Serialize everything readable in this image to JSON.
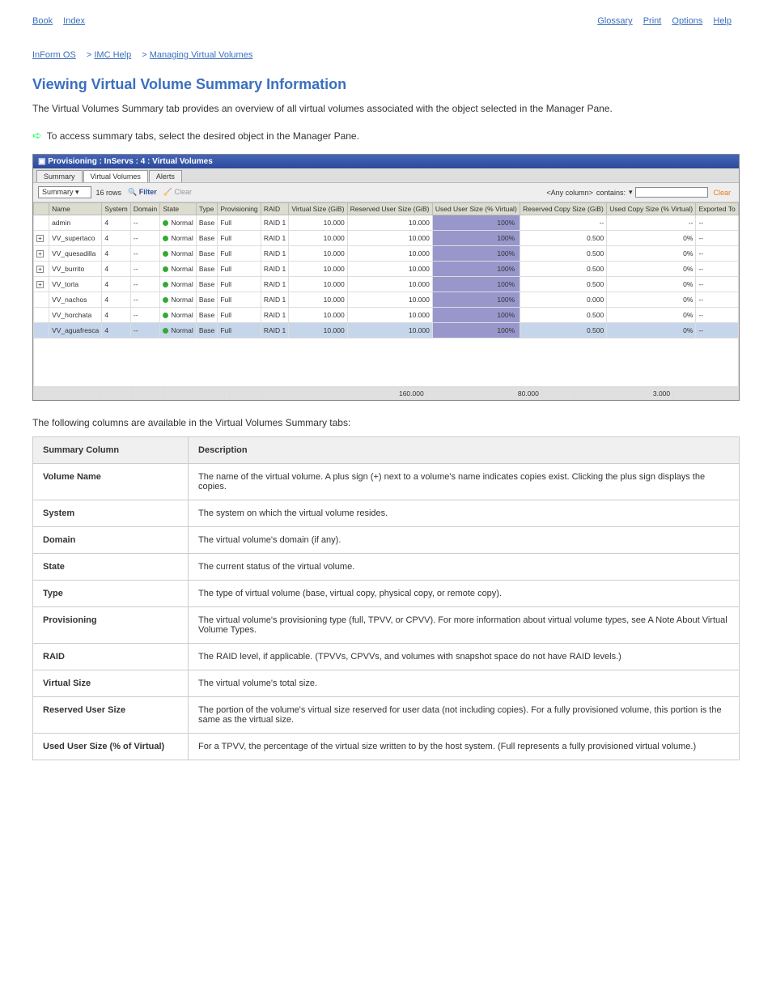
{
  "topnav": {
    "left_book": "Book",
    "left_index": "Index",
    "right_search": "Glossary",
    "right_print": "Print",
    "right_options": "Options",
    "right_help": "Help"
  },
  "breadcrumb": {
    "a": "InForm OS",
    "b": "IMC Help",
    "c": "Managing Virtual Volumes"
  },
  "section_title": "Viewing Virtual Volume Summary Information",
  "intro_text": "The Virtual Volumes Summary tab provides an overview of all virtual volumes associated with the object selected in the Manager Pane.",
  "arrow_text": "To access summary tabs, select the desired object in the Manager Pane.",
  "panel": {
    "title": "Provisioning : InServs : 4 : Virtual Volumes",
    "tabs": [
      "Summary",
      "Virtual Volumes",
      "Alerts"
    ],
    "active_tab": 1,
    "select_value": "Summary",
    "row_count": "16 rows",
    "filter_label": "Filter",
    "clear_toolbar": "Clear",
    "anycol": "<Any column>",
    "contains": "contains:",
    "clear_link": "Clear",
    "columns": [
      "",
      "Name",
      "System",
      "Domain",
      "State",
      "Type",
      "Provisioning",
      "RAID",
      "Virtual Size (GiB)",
      "Reserved User Size (GiB)",
      "Used User Size (% Virtual)",
      "Reserved Copy Size (GiB)",
      "Used Copy Size (% Virtual)",
      "Exported To"
    ],
    "rows": [
      {
        "exp": false,
        "name": "admin",
        "system": "4",
        "domain": "--",
        "state": "Normal",
        "type": "Base",
        "prov": "Full",
        "raid": "RAID 1",
        "vsize": "10.000",
        "ruser": "10.000",
        "uu_pct": 100,
        "rcopy": "--",
        "ucopy": "--",
        "export": "--"
      },
      {
        "exp": true,
        "name": "VV_supertaco",
        "system": "4",
        "domain": "--",
        "state": "Normal",
        "type": "Base",
        "prov": "Full",
        "raid": "RAID 1",
        "vsize": "10.000",
        "ruser": "10.000",
        "uu_pct": 100,
        "rcopy": "0.500",
        "ucopy": "0%",
        "export": "--"
      },
      {
        "exp": true,
        "name": "VV_quesadilla",
        "system": "4",
        "domain": "--",
        "state": "Normal",
        "type": "Base",
        "prov": "Full",
        "raid": "RAID 1",
        "vsize": "10.000",
        "ruser": "10.000",
        "uu_pct": 100,
        "rcopy": "0.500",
        "ucopy": "0%",
        "export": "--"
      },
      {
        "exp": true,
        "name": "VV_burrito",
        "system": "4",
        "domain": "--",
        "state": "Normal",
        "type": "Base",
        "prov": "Full",
        "raid": "RAID 1",
        "vsize": "10.000",
        "ruser": "10.000",
        "uu_pct": 100,
        "rcopy": "0.500",
        "ucopy": "0%",
        "export": "--"
      },
      {
        "exp": true,
        "name": "VV_torta",
        "system": "4",
        "domain": "--",
        "state": "Normal",
        "type": "Base",
        "prov": "Full",
        "raid": "RAID 1",
        "vsize": "10.000",
        "ruser": "10.000",
        "uu_pct": 100,
        "rcopy": "0.500",
        "ucopy": "0%",
        "export": "--"
      },
      {
        "exp": false,
        "name": "VV_nachos",
        "system": "4",
        "domain": "--",
        "state": "Normal",
        "type": "Base",
        "prov": "Full",
        "raid": "RAID 1",
        "vsize": "10.000",
        "ruser": "10.000",
        "uu_pct": 100,
        "rcopy": "0.000",
        "ucopy": "0%",
        "export": "--"
      },
      {
        "exp": false,
        "name": "VV_horchata",
        "system": "4",
        "domain": "--",
        "state": "Normal",
        "type": "Base",
        "prov": "Full",
        "raid": "RAID 1",
        "vsize": "10.000",
        "ruser": "10.000",
        "uu_pct": 100,
        "rcopy": "0.500",
        "ucopy": "0%",
        "export": "--"
      },
      {
        "exp": false,
        "name": "VV_aguafresca",
        "system": "4",
        "domain": "--",
        "state": "Normal",
        "type": "Base",
        "prov": "Full",
        "raid": "RAID 1",
        "vsize": "10.000",
        "ruser": "10.000",
        "uu_pct": 100,
        "rcopy": "0.500",
        "ucopy": "0%",
        "export": "--",
        "selected": true
      }
    ],
    "totals": {
      "vsize": "160.000",
      "ruser": "80.000",
      "rcopy": "3.000"
    }
  },
  "desc_intro": "The following columns are available in the Virtual Volumes Summary tabs:",
  "desc_table": {
    "header": [
      "Summary Column",
      "Description"
    ],
    "rows": [
      [
        "Volume Name",
        "The name of the virtual volume. A plus sign (+) next to a volume's name indicates copies exist. Clicking the plus sign displays the copies."
      ],
      [
        "System",
        "The system on which the virtual volume resides."
      ],
      [
        "Domain",
        "The virtual volume's domain (if any)."
      ],
      [
        "State",
        "The current status of the virtual volume."
      ],
      [
        "Type",
        "The type of virtual volume (base, virtual copy, physical copy, or remote copy)."
      ],
      [
        "Provisioning",
        "The virtual volume's provisioning type (full, TPVV, or CPVV). For more information about virtual volume types, see A Note About Virtual Volume Types."
      ],
      [
        "RAID",
        "The RAID level, if applicable. (TPVVs, CPVVs, and volumes with snapshot space do not have RAID levels.)"
      ],
      [
        "Virtual Size",
        "The virtual volume's total size."
      ],
      [
        "Reserved User Size",
        "The portion of the volume's virtual size reserved for user data (not including copies). For a fully provisioned volume, this portion is the same as the virtual size."
      ],
      [
        "Used User Size (% of Virtual)",
        "For a TPVV, the percentage of the virtual size written to by the host system. (Full represents a fully provisioned virtual volume.)"
      ]
    ]
  }
}
